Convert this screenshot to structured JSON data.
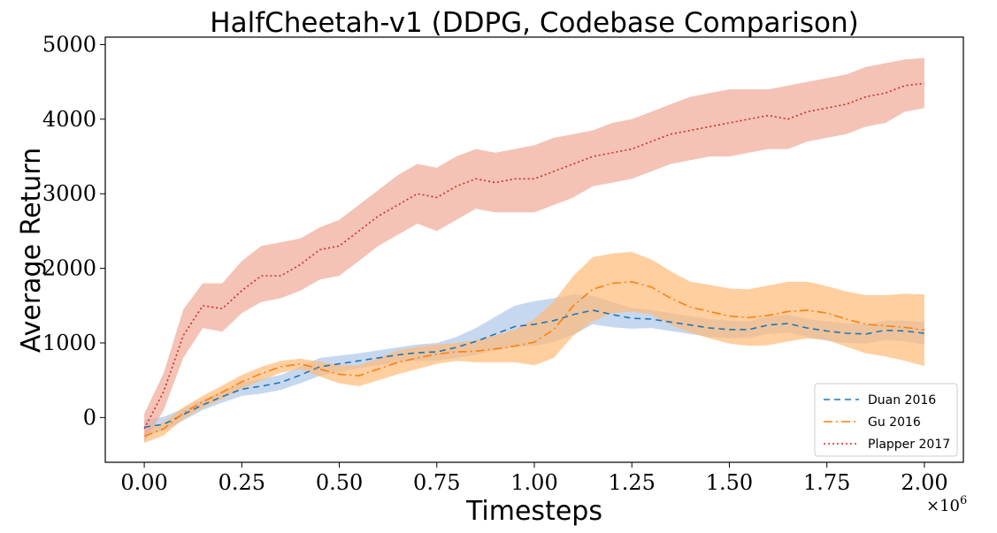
{
  "chart_data": {
    "type": "line",
    "title": "HalfCheetah-v1 (DDPG, Codebase Comparison)",
    "xlabel": "Timesteps",
    "ylabel": "Average Return",
    "x_multiplier": "×10",
    "x_multiplier_exponent": "6",
    "xlim": [
      -0.1,
      2.1
    ],
    "ylim": [
      -600,
      5100
    ],
    "xticks": [
      0.0,
      0.25,
      0.5,
      0.75,
      1.0,
      1.25,
      1.5,
      1.75,
      2.0
    ],
    "xtick_labels": [
      "0.00",
      "0.25",
      "0.50",
      "0.75",
      "1.00",
      "1.25",
      "1.50",
      "1.75",
      "2.00"
    ],
    "yticks": [
      0,
      1000,
      2000,
      3000,
      4000,
      5000
    ],
    "ytick_labels": [
      "0",
      "1000",
      "2000",
      "3000",
      "4000",
      "5000"
    ],
    "grid": false,
    "legend_position": "bottom-right",
    "x": [
      0.0,
      0.05,
      0.1,
      0.15,
      0.2,
      0.25,
      0.3,
      0.35,
      0.4,
      0.45,
      0.5,
      0.55,
      0.6,
      0.65,
      0.7,
      0.75,
      0.8,
      0.85,
      0.9,
      0.95,
      1.0,
      1.05,
      1.1,
      1.15,
      1.2,
      1.25,
      1.3,
      1.35,
      1.4,
      1.45,
      1.5,
      1.55,
      1.6,
      1.65,
      1.7,
      1.75,
      1.8,
      1.85,
      1.9,
      1.95,
      2.0
    ],
    "series": [
      {
        "name": "Duan 2016",
        "color": "#1f77b4",
        "band_color": "#aec7e8",
        "dash": "7,5",
        "mean": [
          -130,
          -90,
          40,
          170,
          280,
          380,
          420,
          470,
          570,
          680,
          720,
          760,
          800,
          840,
          870,
          880,
          940,
          1020,
          1120,
          1220,
          1250,
          1300,
          1380,
          1440,
          1380,
          1330,
          1320,
          1280,
          1240,
          1200,
          1180,
          1180,
          1240,
          1260,
          1200,
          1160,
          1130,
          1120,
          1170,
          1160,
          1130
        ],
        "upper": [
          -30,
          10,
          120,
          240,
          360,
          470,
          520,
          570,
          680,
          800,
          830,
          860,
          900,
          940,
          980,
          1000,
          1080,
          1200,
          1350,
          1500,
          1560,
          1600,
          1650,
          1630,
          1550,
          1470,
          1440,
          1400,
          1360,
          1320,
          1300,
          1290,
          1360,
          1380,
          1320,
          1290,
          1260,
          1250,
          1300,
          1300,
          1280
        ],
        "lower": [
          -230,
          -180,
          -40,
          100,
          200,
          290,
          320,
          370,
          460,
          560,
          610,
          660,
          700,
          740,
          760,
          760,
          800,
          840,
          900,
          950,
          960,
          1010,
          1110,
          1250,
          1210,
          1190,
          1200,
          1160,
          1120,
          1080,
          1060,
          1070,
          1120,
          1140,
          1080,
          1030,
          1000,
          990,
          1040,
          1020,
          980
        ]
      },
      {
        "name": "Gu 2016",
        "color": "#ff7f0e",
        "band_color": "#ffbb78",
        "dash": "10,4,2,4",
        "mean": [
          -250,
          -150,
          60,
          210,
          340,
          480,
          590,
          680,
          720,
          650,
          580,
          560,
          650,
          740,
          800,
          850,
          880,
          890,
          920,
          960,
          1010,
          1180,
          1500,
          1720,
          1800,
          1820,
          1750,
          1600,
          1480,
          1420,
          1360,
          1340,
          1370,
          1420,
          1440,
          1400,
          1320,
          1250,
          1230,
          1210,
          1170
        ],
        "upper": [
          -170,
          -60,
          140,
          290,
          430,
          570,
          680,
          760,
          790,
          750,
          700,
          700,
          800,
          900,
          950,
          980,
          1000,
          1040,
          1100,
          1180,
          1320,
          1560,
          1900,
          2150,
          2200,
          2220,
          2120,
          1960,
          1820,
          1780,
          1730,
          1720,
          1770,
          1820,
          1820,
          1760,
          1690,
          1640,
          1640,
          1660,
          1650
        ],
        "lower": [
          -340,
          -240,
          -20,
          130,
          250,
          390,
          500,
          600,
          650,
          550,
          460,
          420,
          500,
          580,
          650,
          720,
          760,
          740,
          740,
          740,
          700,
          800,
          1100,
          1290,
          1400,
          1420,
          1380,
          1240,
          1140,
          1060,
          990,
          960,
          970,
          1020,
          1060,
          1040,
          950,
          860,
          820,
          760,
          690
        ]
      },
      {
        "name": "Plapper 2017",
        "color": "#d62728",
        "band_color": "#f0a997",
        "dash": "2,3",
        "mean": [
          -150,
          350,
          1100,
          1500,
          1460,
          1700,
          1900,
          1900,
          2050,
          2250,
          2300,
          2500,
          2700,
          2850,
          3000,
          2950,
          3100,
          3200,
          3150,
          3200,
          3200,
          3300,
          3400,
          3500,
          3550,
          3600,
          3700,
          3800,
          3850,
          3900,
          3950,
          4000,
          4050,
          4000,
          4100,
          4150,
          4200,
          4300,
          4350,
          4450,
          4480
        ],
        "upper": [
          50,
          600,
          1450,
          1800,
          1800,
          2100,
          2300,
          2350,
          2400,
          2550,
          2650,
          2850,
          3050,
          3250,
          3400,
          3350,
          3500,
          3600,
          3550,
          3600,
          3650,
          3750,
          3800,
          3850,
          3950,
          4000,
          4100,
          4200,
          4300,
          4350,
          4400,
          4400,
          4400,
          4450,
          4500,
          4550,
          4600,
          4700,
          4750,
          4800,
          4820
        ],
        "lower": [
          -330,
          100,
          800,
          1200,
          1150,
          1400,
          1550,
          1600,
          1700,
          1850,
          1900,
          2100,
          2300,
          2450,
          2600,
          2500,
          2650,
          2800,
          2750,
          2750,
          2750,
          2850,
          2950,
          3100,
          3150,
          3200,
          3300,
          3400,
          3450,
          3500,
          3500,
          3550,
          3600,
          3600,
          3700,
          3750,
          3800,
          3900,
          3950,
          4100,
          4150
        ]
      }
    ]
  }
}
